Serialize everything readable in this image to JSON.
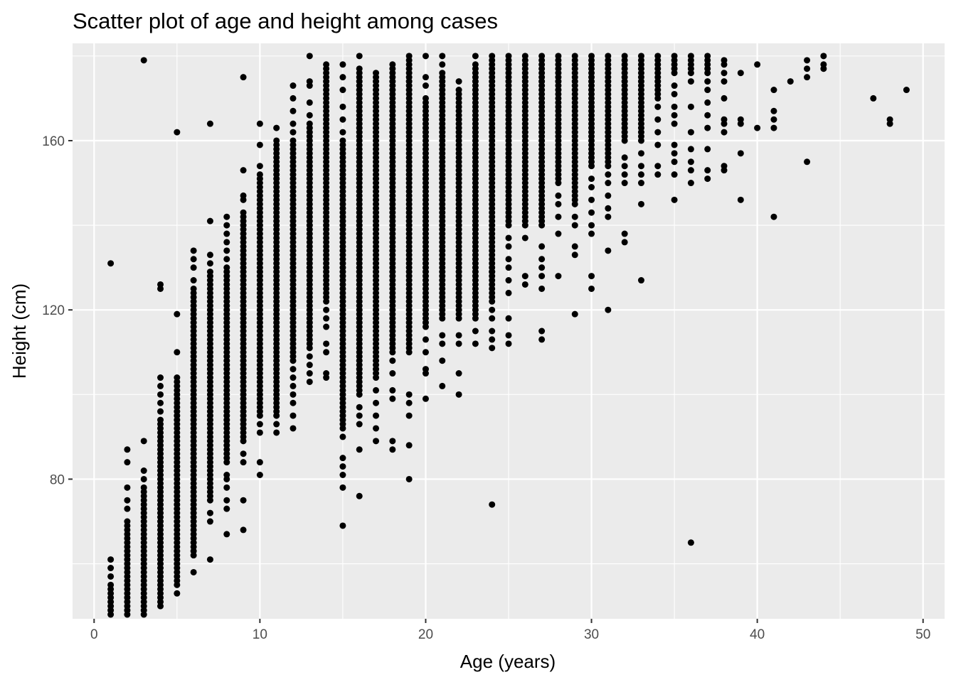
{
  "chart_data": {
    "type": "scatter",
    "title": "Scatter plot of age and height among cases",
    "xlabel": "Age (years)",
    "ylabel": "Height (cm)",
    "xlim": [
      -1.3,
      51.3
    ],
    "ylim": [
      47,
      183
    ],
    "x_ticks": [
      0,
      10,
      20,
      30,
      40,
      50
    ],
    "x_tick_labels": [
      "0",
      "10",
      "20",
      "30",
      "40",
      "50"
    ],
    "y_ticks": [
      80,
      120,
      160
    ],
    "y_tick_labels": [
      "80",
      "120",
      "160"
    ],
    "x_minor_ticks": [
      5,
      15,
      25,
      35,
      45
    ],
    "y_minor_ticks": [
      60,
      100,
      140,
      180
    ],
    "grid": true,
    "legend": "none",
    "colors": {
      "panel": "#ebebeb",
      "grid": "#ffffff",
      "point": "#000000",
      "tick": "#4d4d4d",
      "tick_mark": "#333333"
    },
    "dense_columns": [
      {
        "x": 1,
        "y": [
          48,
          55
        ]
      },
      {
        "x": 2,
        "y": [
          48,
          70
        ]
      },
      {
        "x": 3,
        "y": [
          48,
          78
        ]
      },
      {
        "x": 4,
        "y": [
          50,
          94
        ]
      },
      {
        "x": 5,
        "y": [
          55,
          104
        ]
      },
      {
        "x": 6,
        "y": [
          62,
          125
        ]
      },
      {
        "x": 7,
        "y": [
          75,
          129
        ]
      },
      {
        "x": 8,
        "y": [
          84,
          130
        ]
      },
      {
        "x": 9,
        "y": [
          89,
          143
        ]
      },
      {
        "x": 10,
        "y": [
          96,
          152
        ]
      },
      {
        "x": 11,
        "y": [
          95,
          160
        ]
      },
      {
        "x": 12,
        "y": [
          108,
          160
        ]
      },
      {
        "x": 13,
        "y": [
          111,
          164
        ]
      },
      {
        "x": 14,
        "y": [
          122,
          178
        ]
      },
      {
        "x": 15,
        "y": [
          92,
          160
        ]
      },
      {
        "x": 16,
        "y": [
          100,
          176
        ]
      },
      {
        "x": 17,
        "y": [
          104,
          176
        ]
      },
      {
        "x": 18,
        "y": [
          110,
          178
        ]
      },
      {
        "x": 19,
        "y": [
          110,
          180
        ]
      },
      {
        "x": 20,
        "y": [
          116,
          170
        ]
      },
      {
        "x": 21,
        "y": [
          118,
          176
        ]
      },
      {
        "x": 22,
        "y": [
          118,
          172
        ]
      },
      {
        "x": 23,
        "y": [
          118,
          178
        ]
      },
      {
        "x": 24,
        "y": [
          122,
          180
        ]
      },
      {
        "x": 25,
        "y": [
          140,
          180
        ]
      },
      {
        "x": 26,
        "y": [
          140,
          180
        ]
      },
      {
        "x": 27,
        "y": [
          140,
          180
        ]
      },
      {
        "x": 28,
        "y": [
          150,
          180
        ]
      },
      {
        "x": 29,
        "y": [
          145,
          180
        ]
      },
      {
        "x": 30,
        "y": [
          154,
          180
        ]
      },
      {
        "x": 31,
        "y": [
          154,
          180
        ]
      },
      {
        "x": 32,
        "y": [
          160,
          180
        ]
      },
      {
        "x": 33,
        "y": [
          160,
          180
        ]
      },
      {
        "x": 34,
        "y": [
          170,
          180
        ]
      },
      {
        "x": 35,
        "y": [
          176,
          180
        ]
      },
      {
        "x": 36,
        "y": [
          176,
          180
        ]
      },
      {
        "x": 37,
        "y": [
          176,
          180
        ]
      }
    ],
    "points": [
      {
        "x": 1,
        "y": 61
      },
      {
        "x": 1,
        "y": 59
      },
      {
        "x": 1,
        "y": 57
      },
      {
        "x": 1,
        "y": 131
      },
      {
        "x": 2,
        "y": 73
      },
      {
        "x": 2,
        "y": 75
      },
      {
        "x": 2,
        "y": 78
      },
      {
        "x": 2,
        "y": 84
      },
      {
        "x": 2,
        "y": 87
      },
      {
        "x": 3,
        "y": 80
      },
      {
        "x": 3,
        "y": 82
      },
      {
        "x": 3,
        "y": 89
      },
      {
        "x": 3,
        "y": 179
      },
      {
        "x": 4,
        "y": 96
      },
      {
        "x": 4,
        "y": 98
      },
      {
        "x": 4,
        "y": 100
      },
      {
        "x": 4,
        "y": 102
      },
      {
        "x": 4,
        "y": 104
      },
      {
        "x": 4,
        "y": 125
      },
      {
        "x": 4,
        "y": 126
      },
      {
        "x": 5,
        "y": 53
      },
      {
        "x": 5,
        "y": 110
      },
      {
        "x": 5,
        "y": 119
      },
      {
        "x": 5,
        "y": 162
      },
      {
        "x": 6,
        "y": 58
      },
      {
        "x": 6,
        "y": 127
      },
      {
        "x": 6,
        "y": 130
      },
      {
        "x": 6,
        "y": 132
      },
      {
        "x": 6,
        "y": 134
      },
      {
        "x": 7,
        "y": 61
      },
      {
        "x": 7,
        "y": 70
      },
      {
        "x": 7,
        "y": 72
      },
      {
        "x": 7,
        "y": 131
      },
      {
        "x": 7,
        "y": 133
      },
      {
        "x": 7,
        "y": 141
      },
      {
        "x": 7,
        "y": 164
      },
      {
        "x": 8,
        "y": 67
      },
      {
        "x": 8,
        "y": 73
      },
      {
        "x": 8,
        "y": 75
      },
      {
        "x": 8,
        "y": 78
      },
      {
        "x": 8,
        "y": 80
      },
      {
        "x": 8,
        "y": 81
      },
      {
        "x": 8,
        "y": 132
      },
      {
        "x": 8,
        "y": 134
      },
      {
        "x": 8,
        "y": 136
      },
      {
        "x": 8,
        "y": 138
      },
      {
        "x": 8,
        "y": 140
      },
      {
        "x": 8,
        "y": 142
      },
      {
        "x": 9,
        "y": 68
      },
      {
        "x": 9,
        "y": 75
      },
      {
        "x": 9,
        "y": 84
      },
      {
        "x": 9,
        "y": 86
      },
      {
        "x": 9,
        "y": 146
      },
      {
        "x": 9,
        "y": 147
      },
      {
        "x": 9,
        "y": 153
      },
      {
        "x": 9,
        "y": 175
      },
      {
        "x": 10,
        "y": 81
      },
      {
        "x": 10,
        "y": 84
      },
      {
        "x": 10,
        "y": 91
      },
      {
        "x": 10,
        "y": 93
      },
      {
        "x": 10,
        "y": 95
      },
      {
        "x": 10,
        "y": 154
      },
      {
        "x": 10,
        "y": 159
      },
      {
        "x": 10,
        "y": 164
      },
      {
        "x": 11,
        "y": 91
      },
      {
        "x": 11,
        "y": 93
      },
      {
        "x": 11,
        "y": 163
      },
      {
        "x": 12,
        "y": 92
      },
      {
        "x": 12,
        "y": 95
      },
      {
        "x": 12,
        "y": 98
      },
      {
        "x": 12,
        "y": 100
      },
      {
        "x": 12,
        "y": 102
      },
      {
        "x": 12,
        "y": 104
      },
      {
        "x": 12,
        "y": 106
      },
      {
        "x": 12,
        "y": 162
      },
      {
        "x": 12,
        "y": 164
      },
      {
        "x": 12,
        "y": 167
      },
      {
        "x": 12,
        "y": 170
      },
      {
        "x": 12,
        "y": 173
      },
      {
        "x": 13,
        "y": 103
      },
      {
        "x": 13,
        "y": 105
      },
      {
        "x": 13,
        "y": 107
      },
      {
        "x": 13,
        "y": 109
      },
      {
        "x": 13,
        "y": 166
      },
      {
        "x": 13,
        "y": 169
      },
      {
        "x": 13,
        "y": 173
      },
      {
        "x": 13,
        "y": 174
      },
      {
        "x": 13,
        "y": 180
      },
      {
        "x": 14,
        "y": 104
      },
      {
        "x": 14,
        "y": 105
      },
      {
        "x": 14,
        "y": 110
      },
      {
        "x": 14,
        "y": 112
      },
      {
        "x": 14,
        "y": 116
      },
      {
        "x": 14,
        "y": 118
      },
      {
        "x": 14,
        "y": 120
      },
      {
        "x": 15,
        "y": 69
      },
      {
        "x": 15,
        "y": 78
      },
      {
        "x": 15,
        "y": 81
      },
      {
        "x": 15,
        "y": 83
      },
      {
        "x": 15,
        "y": 85
      },
      {
        "x": 15,
        "y": 90
      },
      {
        "x": 15,
        "y": 162
      },
      {
        "x": 15,
        "y": 165
      },
      {
        "x": 15,
        "y": 168
      },
      {
        "x": 15,
        "y": 172
      },
      {
        "x": 15,
        "y": 175
      },
      {
        "x": 15,
        "y": 178
      },
      {
        "x": 16,
        "y": 76
      },
      {
        "x": 16,
        "y": 87
      },
      {
        "x": 16,
        "y": 93
      },
      {
        "x": 16,
        "y": 95
      },
      {
        "x": 16,
        "y": 97
      },
      {
        "x": 16,
        "y": 177
      },
      {
        "x": 16,
        "y": 180
      },
      {
        "x": 17,
        "y": 89
      },
      {
        "x": 17,
        "y": 92
      },
      {
        "x": 17,
        "y": 95
      },
      {
        "x": 17,
        "y": 98
      },
      {
        "x": 17,
        "y": 101
      },
      {
        "x": 18,
        "y": 87
      },
      {
        "x": 18,
        "y": 89
      },
      {
        "x": 18,
        "y": 99
      },
      {
        "x": 18,
        "y": 101
      },
      {
        "x": 18,
        "y": 105
      },
      {
        "x": 18,
        "y": 108
      },
      {
        "x": 19,
        "y": 80
      },
      {
        "x": 19,
        "y": 88
      },
      {
        "x": 19,
        "y": 95
      },
      {
        "x": 19,
        "y": 98
      },
      {
        "x": 19,
        "y": 100
      },
      {
        "x": 20,
        "y": 99
      },
      {
        "x": 20,
        "y": 105
      },
      {
        "x": 20,
        "y": 106
      },
      {
        "x": 20,
        "y": 110
      },
      {
        "x": 20,
        "y": 113
      },
      {
        "x": 20,
        "y": 173
      },
      {
        "x": 20,
        "y": 175
      },
      {
        "x": 20,
        "y": 180
      },
      {
        "x": 21,
        "y": 102
      },
      {
        "x": 21,
        "y": 108
      },
      {
        "x": 21,
        "y": 112
      },
      {
        "x": 21,
        "y": 114
      },
      {
        "x": 21,
        "y": 178
      },
      {
        "x": 21,
        "y": 180
      },
      {
        "x": 22,
        "y": 100
      },
      {
        "x": 22,
        "y": 105
      },
      {
        "x": 22,
        "y": 112
      },
      {
        "x": 22,
        "y": 114
      },
      {
        "x": 22,
        "y": 174
      },
      {
        "x": 23,
        "y": 112
      },
      {
        "x": 23,
        "y": 115
      },
      {
        "x": 23,
        "y": 180
      },
      {
        "x": 24,
        "y": 74
      },
      {
        "x": 24,
        "y": 111
      },
      {
        "x": 24,
        "y": 113
      },
      {
        "x": 24,
        "y": 115
      },
      {
        "x": 24,
        "y": 118
      },
      {
        "x": 24,
        "y": 120
      },
      {
        "x": 24,
        "y": 129
      },
      {
        "x": 25,
        "y": 112
      },
      {
        "x": 25,
        "y": 114
      },
      {
        "x": 25,
        "y": 118
      },
      {
        "x": 25,
        "y": 124
      },
      {
        "x": 25,
        "y": 127
      },
      {
        "x": 25,
        "y": 130
      },
      {
        "x": 25,
        "y": 132
      },
      {
        "x": 25,
        "y": 135
      },
      {
        "x": 25,
        "y": 137
      },
      {
        "x": 26,
        "y": 126
      },
      {
        "x": 26,
        "y": 128
      },
      {
        "x": 26,
        "y": 137
      },
      {
        "x": 27,
        "y": 113
      },
      {
        "x": 27,
        "y": 115
      },
      {
        "x": 27,
        "y": 125
      },
      {
        "x": 27,
        "y": 128
      },
      {
        "x": 27,
        "y": 130
      },
      {
        "x": 27,
        "y": 132
      },
      {
        "x": 27,
        "y": 135
      },
      {
        "x": 28,
        "y": 128
      },
      {
        "x": 28,
        "y": 138
      },
      {
        "x": 28,
        "y": 142
      },
      {
        "x": 28,
        "y": 145
      },
      {
        "x": 28,
        "y": 147
      },
      {
        "x": 29,
        "y": 119
      },
      {
        "x": 29,
        "y": 133
      },
      {
        "x": 29,
        "y": 135
      },
      {
        "x": 29,
        "y": 140
      },
      {
        "x": 29,
        "y": 142
      },
      {
        "x": 30,
        "y": 125
      },
      {
        "x": 30,
        "y": 128
      },
      {
        "x": 30,
        "y": 138
      },
      {
        "x": 30,
        "y": 140
      },
      {
        "x": 30,
        "y": 143
      },
      {
        "x": 30,
        "y": 146
      },
      {
        "x": 30,
        "y": 149
      },
      {
        "x": 30,
        "y": 151
      },
      {
        "x": 31,
        "y": 120
      },
      {
        "x": 31,
        "y": 134
      },
      {
        "x": 31,
        "y": 142
      },
      {
        "x": 31,
        "y": 144
      },
      {
        "x": 31,
        "y": 147
      },
      {
        "x": 31,
        "y": 150
      },
      {
        "x": 31,
        "y": 152
      },
      {
        "x": 32,
        "y": 136
      },
      {
        "x": 32,
        "y": 138
      },
      {
        "x": 32,
        "y": 150
      },
      {
        "x": 32,
        "y": 152
      },
      {
        "x": 32,
        "y": 154
      },
      {
        "x": 32,
        "y": 156
      },
      {
        "x": 33,
        "y": 127
      },
      {
        "x": 33,
        "y": 145
      },
      {
        "x": 33,
        "y": 150
      },
      {
        "x": 33,
        "y": 152
      },
      {
        "x": 33,
        "y": 154
      },
      {
        "x": 33,
        "y": 157
      },
      {
        "x": 34,
        "y": 152
      },
      {
        "x": 34,
        "y": 154
      },
      {
        "x": 34,
        "y": 159
      },
      {
        "x": 34,
        "y": 162
      },
      {
        "x": 34,
        "y": 165
      },
      {
        "x": 34,
        "y": 168
      },
      {
        "x": 35,
        "y": 146
      },
      {
        "x": 35,
        "y": 152
      },
      {
        "x": 35,
        "y": 155
      },
      {
        "x": 35,
        "y": 157
      },
      {
        "x": 35,
        "y": 159
      },
      {
        "x": 35,
        "y": 164
      },
      {
        "x": 35,
        "y": 166
      },
      {
        "x": 35,
        "y": 168
      },
      {
        "x": 35,
        "y": 171
      },
      {
        "x": 35,
        "y": 173
      },
      {
        "x": 36,
        "y": 65
      },
      {
        "x": 36,
        "y": 150
      },
      {
        "x": 36,
        "y": 153
      },
      {
        "x": 36,
        "y": 155
      },
      {
        "x": 36,
        "y": 158
      },
      {
        "x": 36,
        "y": 162
      },
      {
        "x": 36,
        "y": 168
      },
      {
        "x": 36,
        "y": 174
      },
      {
        "x": 37,
        "y": 151
      },
      {
        "x": 37,
        "y": 153
      },
      {
        "x": 37,
        "y": 158
      },
      {
        "x": 37,
        "y": 163
      },
      {
        "x": 37,
        "y": 166
      },
      {
        "x": 37,
        "y": 169
      },
      {
        "x": 37,
        "y": 172
      },
      {
        "x": 37,
        "y": 174
      },
      {
        "x": 38,
        "y": 153
      },
      {
        "x": 38,
        "y": 154
      },
      {
        "x": 38,
        "y": 162
      },
      {
        "x": 38,
        "y": 164
      },
      {
        "x": 38,
        "y": 165
      },
      {
        "x": 38,
        "y": 170
      },
      {
        "x": 38,
        "y": 174
      },
      {
        "x": 38,
        "y": 176
      },
      {
        "x": 38,
        "y": 178
      },
      {
        "x": 38,
        "y": 179
      },
      {
        "x": 39,
        "y": 146
      },
      {
        "x": 39,
        "y": 157
      },
      {
        "x": 39,
        "y": 164
      },
      {
        "x": 39,
        "y": 165
      },
      {
        "x": 39,
        "y": 176
      },
      {
        "x": 40,
        "y": 163
      },
      {
        "x": 40,
        "y": 178
      },
      {
        "x": 41,
        "y": 142
      },
      {
        "x": 41,
        "y": 163
      },
      {
        "x": 41,
        "y": 165
      },
      {
        "x": 41,
        "y": 167
      },
      {
        "x": 41,
        "y": 172
      },
      {
        "x": 42,
        "y": 174
      },
      {
        "x": 43,
        "y": 155
      },
      {
        "x": 43,
        "y": 175
      },
      {
        "x": 43,
        "y": 177
      },
      {
        "x": 43,
        "y": 179
      },
      {
        "x": 44,
        "y": 177
      },
      {
        "x": 44,
        "y": 178
      },
      {
        "x": 44,
        "y": 180
      },
      {
        "x": 47,
        "y": 170
      },
      {
        "x": 48,
        "y": 164
      },
      {
        "x": 48,
        "y": 165
      },
      {
        "x": 49,
        "y": 172
      }
    ]
  }
}
